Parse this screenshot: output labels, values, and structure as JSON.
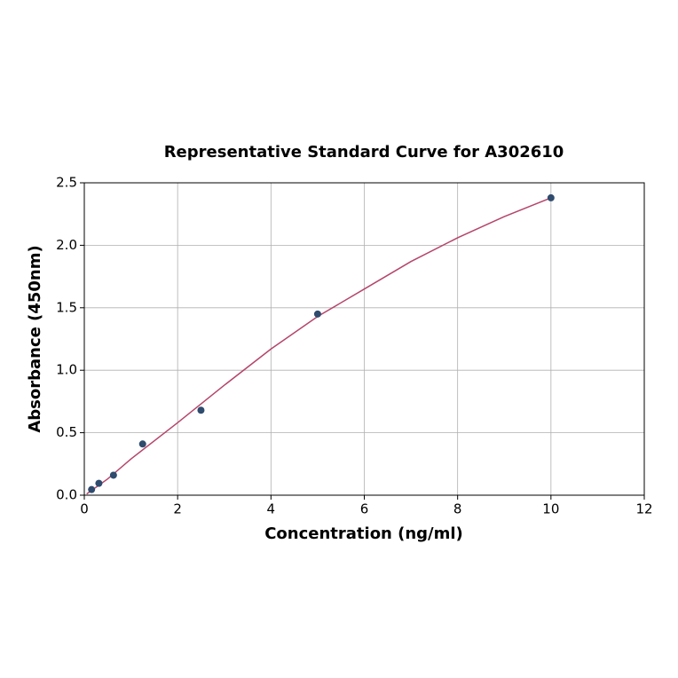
{
  "chart_data": {
    "type": "scatter",
    "title": "Representative Standard Curve for A302610",
    "xlabel": "Concentration (ng/ml)",
    "ylabel": "Absorbance (450nm)",
    "points": {
      "x": [
        0.156,
        0.3125,
        0.625,
        1.25,
        2.5,
        5,
        10
      ],
      "y": [
        0.045,
        0.095,
        0.16,
        0.41,
        0.68,
        1.45,
        2.38
      ],
      "color": "#2f4b6e"
    },
    "fit": {
      "x": [
        0.05,
        0.5,
        1,
        2,
        3,
        4,
        5,
        6,
        7,
        8,
        9,
        10
      ],
      "y": [
        0.01,
        0.13,
        0.29,
        0.58,
        0.88,
        1.17,
        1.43,
        1.65,
        1.87,
        2.06,
        2.23,
        2.38
      ],
      "color": "#b5456a"
    },
    "xlim": [
      0,
      12
    ],
    "ylim": [
      0,
      2.5
    ],
    "xticks": [
      0,
      2,
      4,
      6,
      8,
      10,
      12
    ],
    "yticks": [
      {
        "value": 0,
        "label": "0.0"
      },
      0.5,
      {
        "value": 1,
        "label": "1.0"
      },
      1.5,
      {
        "value": 2,
        "label": "2.0"
      },
      2.5
    ],
    "grid": true
  }
}
